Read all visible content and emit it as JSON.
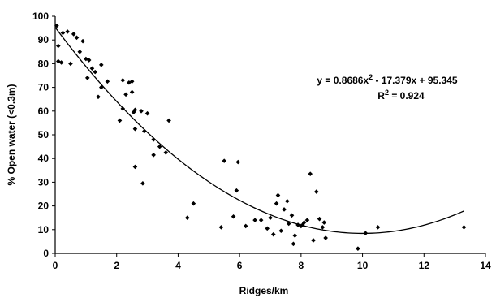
{
  "chart_data": {
    "type": "scatter",
    "xlabel": "Ridges/km",
    "ylabel": "% Open water (<0.3m)",
    "xlim": [
      0,
      14
    ],
    "ylim": [
      0,
      100
    ],
    "x_ticks": [
      0,
      2,
      4,
      6,
      8,
      10,
      12,
      14
    ],
    "y_ticks": [
      0,
      10,
      20,
      30,
      40,
      50,
      60,
      70,
      80,
      90,
      100
    ],
    "grid": false,
    "legend": "none",
    "marker_color": "#000000",
    "trendline": {
      "type": "polynomial",
      "coefficients": [
        0.8686,
        -17.379,
        95.345
      ],
      "x_range": [
        0,
        13.3
      ]
    },
    "annotations": {
      "equation_prefix": "y = 0.8686x",
      "equation_exp": "2",
      "equation_suffix": " - 17.379x + 95.345",
      "r2_prefix": "R",
      "r2_exp": "2",
      "r2_suffix": " = 0.924"
    },
    "points": [
      [
        0.05,
        96
      ],
      [
        0.1,
        87.5
      ],
      [
        0.1,
        81
      ],
      [
        0.2,
        80.5
      ],
      [
        0.25,
        93
      ],
      [
        0.4,
        93.5
      ],
      [
        0.5,
        80
      ],
      [
        0.6,
        92.5
      ],
      [
        0.7,
        91
      ],
      [
        0.8,
        85
      ],
      [
        0.9,
        89.5
      ],
      [
        1.0,
        82
      ],
      [
        1.05,
        74
      ],
      [
        1.1,
        81.5
      ],
      [
        1.2,
        78
      ],
      [
        1.3,
        76.5
      ],
      [
        1.4,
        66
      ],
      [
        1.5,
        79.5
      ],
      [
        1.5,
        70
      ],
      [
        1.7,
        72.5
      ],
      [
        2.1,
        56
      ],
      [
        2.2,
        61
      ],
      [
        2.2,
        73
      ],
      [
        2.3,
        67
      ],
      [
        2.4,
        72
      ],
      [
        2.5,
        72.5
      ],
      [
        2.5,
        68
      ],
      [
        2.55,
        59.5
      ],
      [
        2.6,
        60.5
      ],
      [
        2.6,
        52.5
      ],
      [
        2.6,
        36.5
      ],
      [
        2.8,
        60
      ],
      [
        2.85,
        29.5
      ],
      [
        2.9,
        51.5
      ],
      [
        3.0,
        59
      ],
      [
        3.2,
        41.5
      ],
      [
        3.2,
        48
      ],
      [
        3.4,
        45
      ],
      [
        3.6,
        42.5
      ],
      [
        3.7,
        56
      ],
      [
        4.3,
        15
      ],
      [
        4.5,
        21
      ],
      [
        5.4,
        11
      ],
      [
        5.5,
        39
      ],
      [
        5.8,
        15.5
      ],
      [
        5.9,
        26.5
      ],
      [
        5.95,
        38.5
      ],
      [
        6.2,
        11.5
      ],
      [
        6.5,
        14
      ],
      [
        6.7,
        14
      ],
      [
        6.9,
        10.5
      ],
      [
        7.0,
        15
      ],
      [
        7.1,
        8
      ],
      [
        7.2,
        21
      ],
      [
        7.25,
        24.5
      ],
      [
        7.35,
        9.5
      ],
      [
        7.45,
        18.5
      ],
      [
        7.55,
        22
      ],
      [
        7.6,
        12.5
      ],
      [
        7.7,
        16
      ],
      [
        7.75,
        4
      ],
      [
        7.8,
        7.5
      ],
      [
        7.9,
        12
      ],
      [
        8.0,
        11.5
      ],
      [
        8.05,
        12
      ],
      [
        8.1,
        13
      ],
      [
        8.2,
        14
      ],
      [
        8.3,
        33.5
      ],
      [
        8.4,
        5.5
      ],
      [
        8.5,
        26
      ],
      [
        8.6,
        14.5
      ],
      [
        8.7,
        11
      ],
      [
        8.75,
        13
      ],
      [
        8.8,
        6.5
      ],
      [
        9.85,
        2
      ],
      [
        10.1,
        8.5
      ],
      [
        10.5,
        11
      ],
      [
        13.3,
        11
      ]
    ]
  }
}
